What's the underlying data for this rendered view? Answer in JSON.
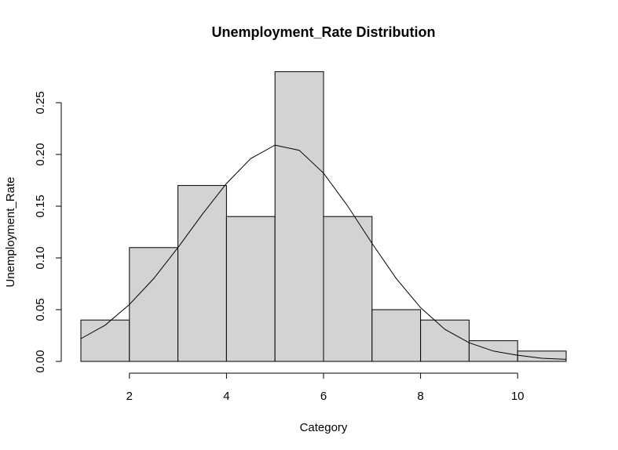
{
  "chart_data": {
    "type": "bar",
    "title": "Unemployment_Rate Distribution",
    "xlabel": "Category",
    "ylabel": "Unemployment_Rate",
    "bin_edges": [
      1,
      2,
      3,
      4,
      5,
      6,
      7,
      8,
      9,
      10,
      11
    ],
    "values": [
      0.04,
      0.11,
      0.17,
      0.14,
      0.28,
      0.14,
      0.05,
      0.04,
      0.02,
      0.01
    ],
    "xlim": [
      1,
      11
    ],
    "ylim": [
      0,
      0.28
    ],
    "x_ticks": [
      "2",
      "4",
      "6",
      "8",
      "10"
    ],
    "y_ticks": [
      "0.00",
      "0.05",
      "0.10",
      "0.15",
      "0.20",
      "0.25"
    ],
    "density_curve": {
      "x": [
        1,
        1.5,
        2,
        2.5,
        3,
        3.5,
        4,
        4.5,
        5,
        5.5,
        6,
        6.5,
        7,
        7.5,
        8,
        8.5,
        9,
        9.5,
        10,
        10.5,
        11
      ],
      "y": [
        0.022,
        0.035,
        0.055,
        0.08,
        0.11,
        0.142,
        0.172,
        0.196,
        0.209,
        0.204,
        0.182,
        0.15,
        0.114,
        0.08,
        0.052,
        0.031,
        0.018,
        0.01,
        0.006,
        0.003,
        0.002
      ]
    },
    "grid": false,
    "legend": "none",
    "bar_fill": "#d3d3d3",
    "bar_stroke": "#000000"
  }
}
